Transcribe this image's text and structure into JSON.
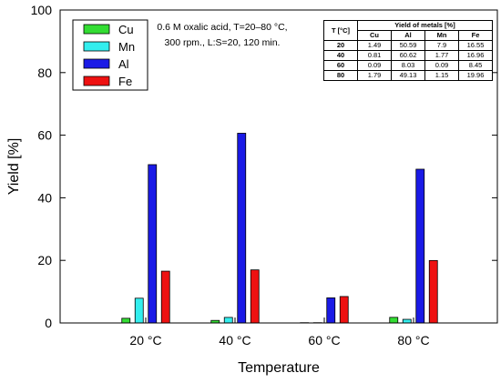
{
  "chart_data": {
    "type": "bar",
    "categories": [
      "20 °C",
      "40 °C",
      "60 °C",
      "80 °C"
    ],
    "series": [
      {
        "name": "Cu",
        "color": "#33dd33",
        "values": [
          1.49,
          0.81,
          0.09,
          1.79
        ]
      },
      {
        "name": "Mn",
        "color": "#33eeee",
        "values": [
          7.9,
          1.77,
          0.09,
          1.15
        ]
      },
      {
        "name": "Al",
        "color": "#1a1ae6",
        "values": [
          50.59,
          60.62,
          8.03,
          49.13
        ]
      },
      {
        "name": "Fe",
        "color": "#ee1111",
        "values": [
          16.55,
          16.96,
          8.45,
          19.96
        ]
      }
    ],
    "xlabel": "Temperature",
    "ylabel": "Yield [%]",
    "ylim": [
      0,
      100
    ],
    "yticks": [
      0,
      20,
      40,
      60,
      80,
      100
    ],
    "legend_position": "top-left",
    "grid": false,
    "annotation": {
      "line1": "0.6 M oxalic acid, T=20–80 °C,",
      "line2": "300 rpm., L:S=20, 120 min."
    },
    "table": {
      "temp_header": "T [°C]",
      "group_header": "Yield of metals [%]",
      "columns": [
        "Cu",
        "Al",
        "Mn",
        "Fe"
      ],
      "rows": [
        {
          "t": "20",
          "cells": [
            "1.49",
            "50.59",
            "7.9",
            "16.55"
          ]
        },
        {
          "t": "40",
          "cells": [
            "0.81",
            "60.62",
            "1.77",
            "16.96"
          ]
        },
        {
          "t": "60",
          "cells": [
            "0.09",
            "8.03",
            "0.09",
            "8.45"
          ]
        },
        {
          "t": "80",
          "cells": [
            "1.79",
            "49.13",
            "1.15",
            "19.96"
          ]
        }
      ]
    }
  }
}
